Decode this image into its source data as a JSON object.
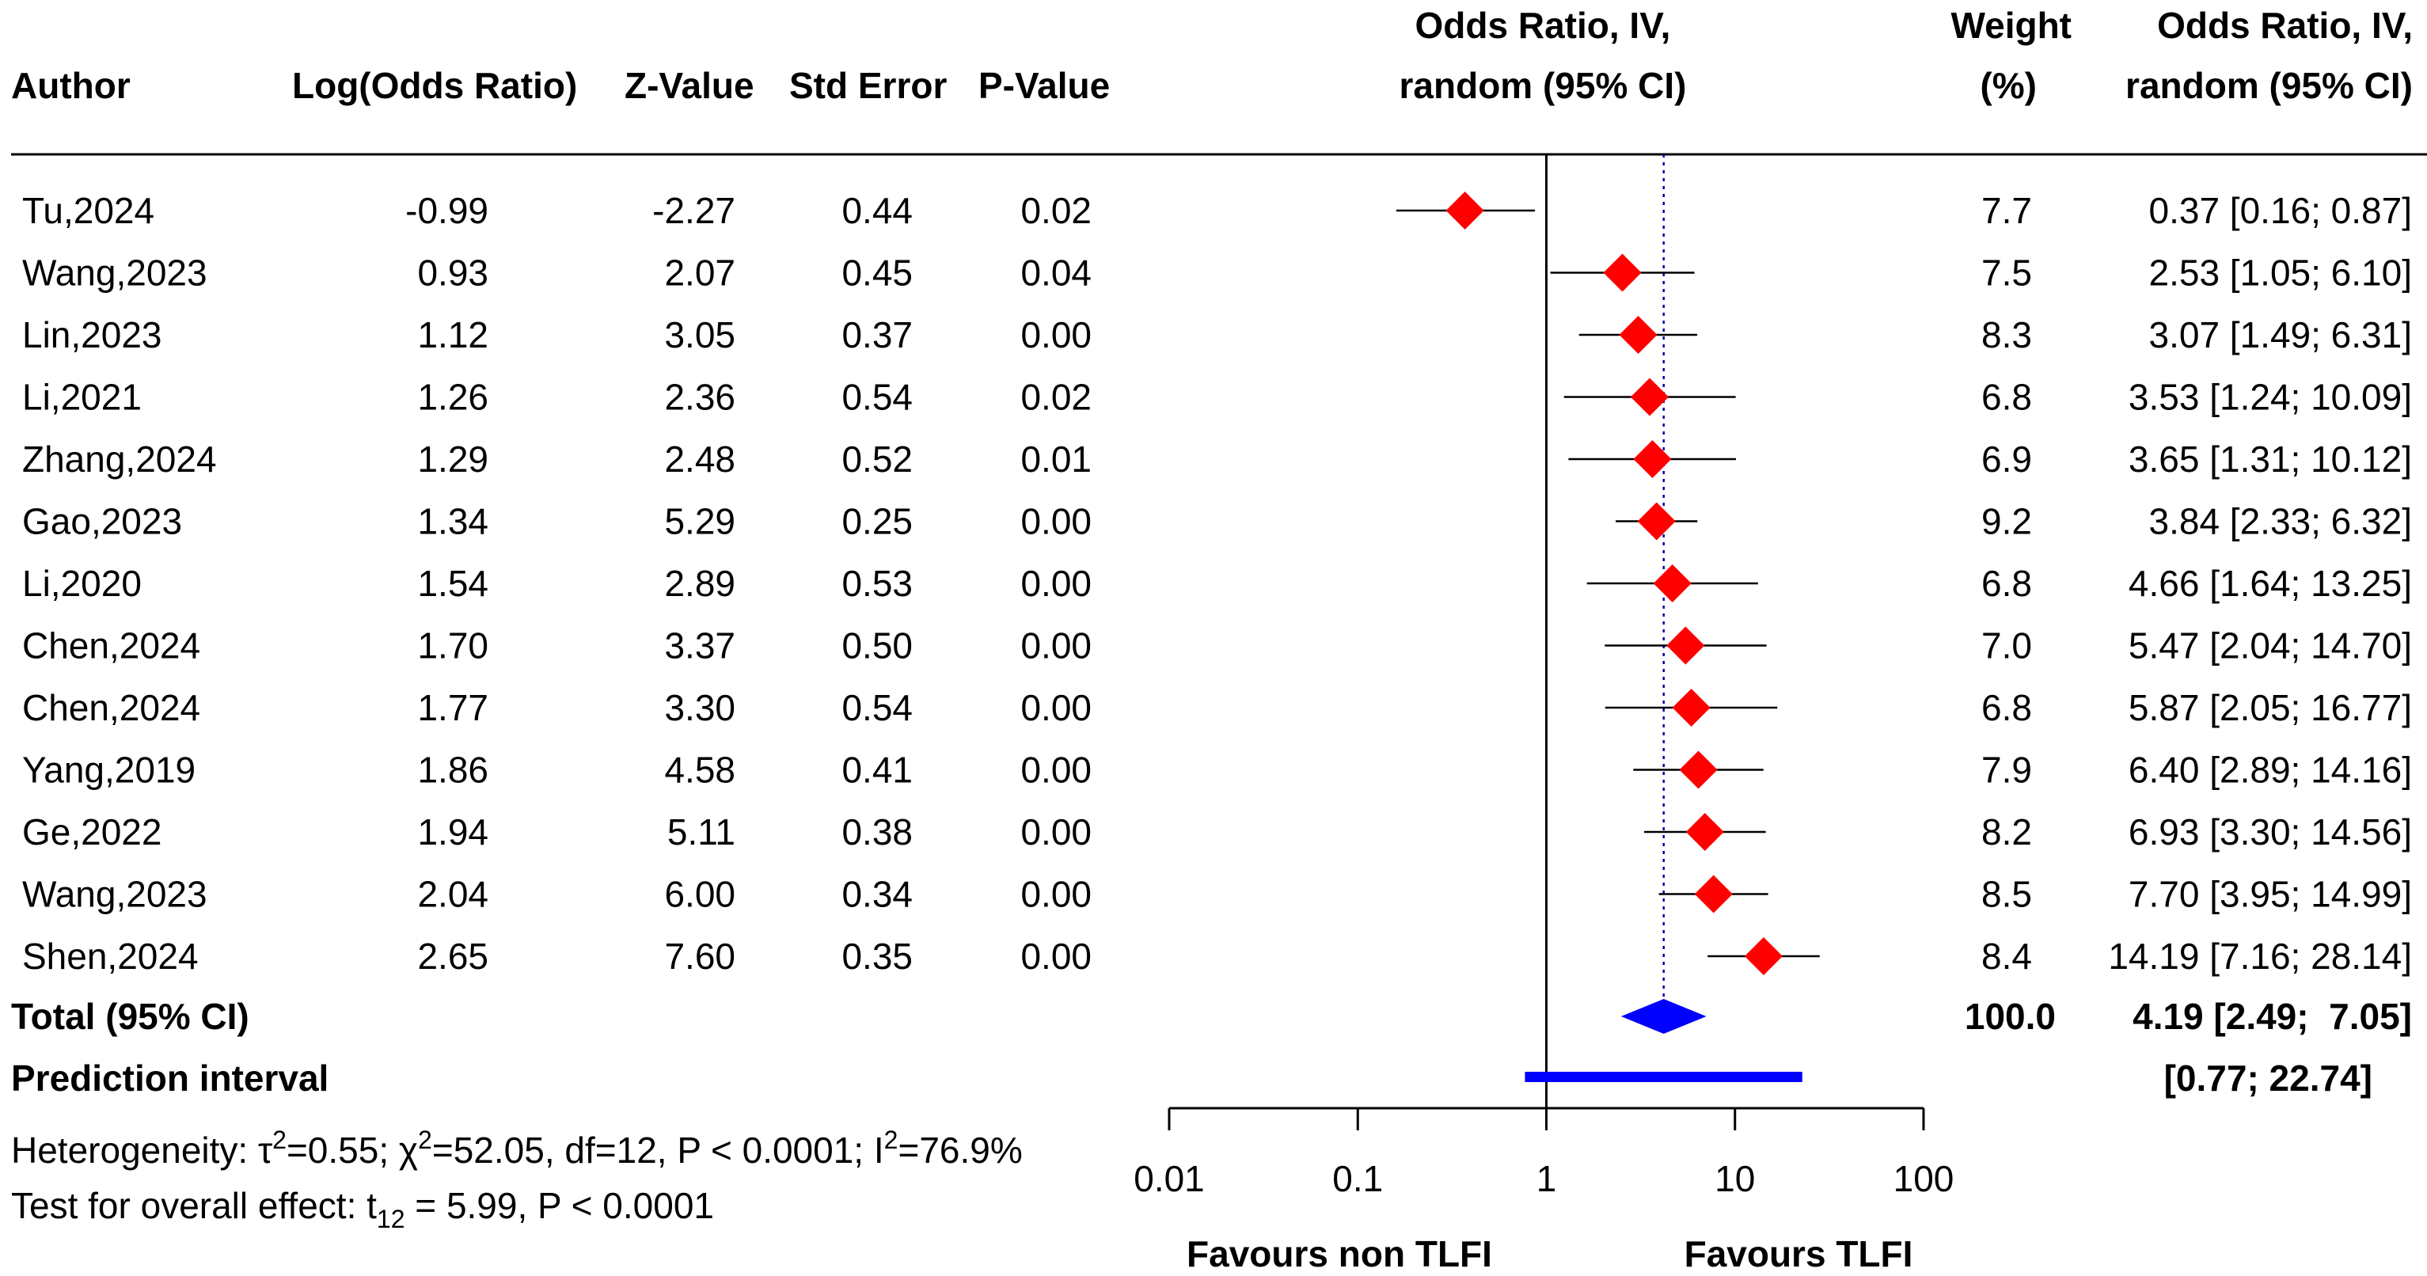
{
  "chart_data": {
    "type": "forest",
    "columns": {
      "author": "Author",
      "log_or": "Log(Odds Ratio)",
      "z": "Z-Value",
      "se": "Std Error",
      "p": "P-Value",
      "plot_line1": "Odds Ratio, IV,",
      "plot_line2": "random (95% CI)",
      "weight_line1": "Weight",
      "weight_line2": "(%)",
      "ci_line1": "Odds Ratio, IV,",
      "ci_line2": "random (95% CI)"
    },
    "studies": [
      {
        "author": "Tu,2024",
        "log_or": "-0.99",
        "z": "-2.27",
        "se": "0.44",
        "p": "0.02",
        "or": 0.37,
        "lo": 0.16,
        "hi": 0.87,
        "weight": "7.7",
        "ci_text": "0.37 [0.16;  0.87]"
      },
      {
        "author": "Wang,2023",
        "log_or": "0.93",
        "z": "2.07",
        "se": "0.45",
        "p": "0.04",
        "or": 2.53,
        "lo": 1.05,
        "hi": 6.1,
        "weight": "7.5",
        "ci_text": "2.53 [1.05;  6.10]"
      },
      {
        "author": "Lin,2023",
        "log_or": "1.12",
        "z": "3.05",
        "se": "0.37",
        "p": "0.00",
        "or": 3.07,
        "lo": 1.49,
        "hi": 6.31,
        "weight": "8.3",
        "ci_text": "3.07 [1.49;  6.31]"
      },
      {
        "author": "Li,2021",
        "log_or": "1.26",
        "z": "2.36",
        "se": "0.54",
        "p": "0.02",
        "or": 3.53,
        "lo": 1.24,
        "hi": 10.09,
        "weight": "6.8",
        "ci_text": "3.53 [1.24; 10.09]"
      },
      {
        "author": "Zhang,2024",
        "log_or": "1.29",
        "z": "2.48",
        "se": "0.52",
        "p": "0.01",
        "or": 3.65,
        "lo": 1.31,
        "hi": 10.12,
        "weight": "6.9",
        "ci_text": "3.65 [1.31; 10.12]"
      },
      {
        "author": "Gao,2023",
        "log_or": "1.34",
        "z": "5.29",
        "se": "0.25",
        "p": "0.00",
        "or": 3.84,
        "lo": 2.33,
        "hi": 6.32,
        "weight": "9.2",
        "ci_text": "3.84 [2.33;  6.32]"
      },
      {
        "author": "Li,2020",
        "log_or": "1.54",
        "z": "2.89",
        "se": "0.53",
        "p": "0.00",
        "or": 4.66,
        "lo": 1.64,
        "hi": 13.25,
        "weight": "6.8",
        "ci_text": "4.66 [1.64; 13.25]"
      },
      {
        "author": "Chen,2024",
        "log_or": "1.70",
        "z": "3.37",
        "se": "0.50",
        "p": "0.00",
        "or": 5.47,
        "lo": 2.04,
        "hi": 14.7,
        "weight": "7.0",
        "ci_text": "5.47 [2.04; 14.70]"
      },
      {
        "author": "Chen,2024",
        "log_or": "1.77",
        "z": "3.30",
        "se": "0.54",
        "p": "0.00",
        "or": 5.87,
        "lo": 2.05,
        "hi": 16.77,
        "weight": "6.8",
        "ci_text": "5.87 [2.05; 16.77]"
      },
      {
        "author": "Yang,2019",
        "log_or": "1.86",
        "z": "4.58",
        "se": "0.41",
        "p": "0.00",
        "or": 6.4,
        "lo": 2.89,
        "hi": 14.16,
        "weight": "7.9",
        "ci_text": "6.40 [2.89; 14.16]"
      },
      {
        "author": "Ge,2022",
        "log_or": "1.94",
        "z": "5.11",
        "se": "0.38",
        "p": "0.00",
        "or": 6.93,
        "lo": 3.3,
        "hi": 14.56,
        "weight": "8.2",
        "ci_text": "6.93 [3.30; 14.56]"
      },
      {
        "author": "Wang,2023",
        "log_or": "2.04",
        "z": "6.00",
        "se": "0.34",
        "p": "0.00",
        "or": 7.7,
        "lo": 3.95,
        "hi": 14.99,
        "weight": "8.5",
        "ci_text": "7.70 [3.95; 14.99]"
      },
      {
        "author": "Shen,2024",
        "log_or": "2.65",
        "z": "7.60",
        "se": "0.35",
        "p": "0.00",
        "or": 14.19,
        "lo": 7.16,
        "hi": 28.14,
        "weight": "8.4",
        "ci_text": "14.19 [7.16; 28.14]"
      }
    ],
    "total": {
      "label": "Total (95% CI)",
      "weight": "100.0",
      "or": 4.19,
      "lo": 2.49,
      "hi": 7.05,
      "ci_text": "4.19 [2.49;  7.05]"
    },
    "prediction": {
      "label": "Prediction interval",
      "lo": 0.77,
      "hi": 22.74,
      "ci_text": "[0.77; 22.74]"
    },
    "heterogeneity": {
      "prefix": "Heterogeneity: ",
      "tau": "τ",
      "tau_val": "=0.55; ",
      "chi": "χ",
      "chi_val": "=52.05, df=12, P < 0.0001; I",
      "i2_val": "=76.9%",
      "sup": "2"
    },
    "overall": {
      "prefix": "Test for overall effect: t",
      "sub": "12",
      "rest": " = 5.99, P < 0.0001"
    },
    "x_axis": {
      "scale": "log",
      "xlim": [
        0.01,
        100
      ],
      "ticks": [
        0.01,
        0.1,
        1,
        10,
        100
      ],
      "tick_labels": [
        "0.01",
        "0.1",
        "1",
        "10",
        "100"
      ],
      "null_line": 1
    },
    "favours_left": "Favours non TLFI",
    "favours_right": "Favours TLFI",
    "colors": {
      "study_marker": "#ff0000",
      "summary": "#0000ff",
      "line": "#000000",
      "pooled_line": "#0000aa"
    }
  }
}
